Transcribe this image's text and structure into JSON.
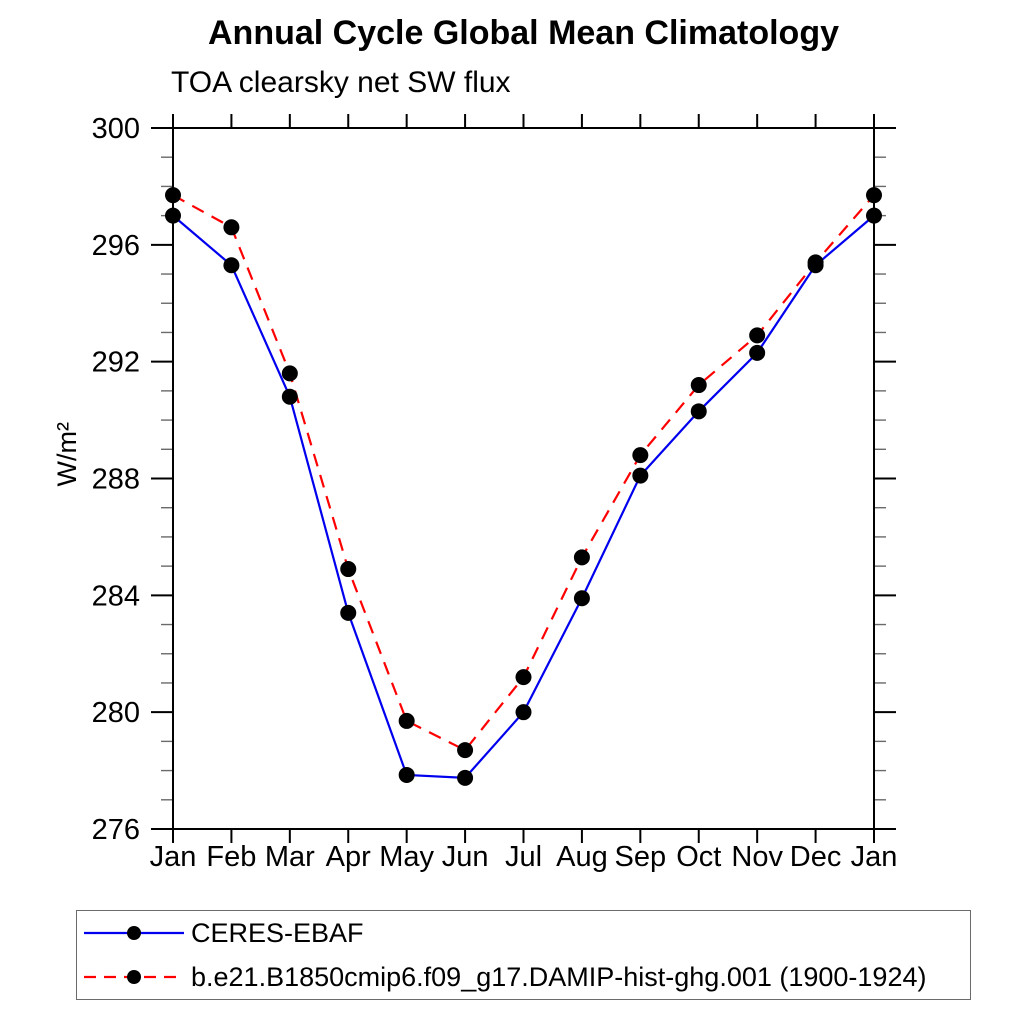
{
  "title": "Annual Cycle Global Mean Climatology",
  "subtitle": "TOA clearsky net SW flux",
  "ylabel": "W/m²",
  "chart_data": {
    "type": "line",
    "categories": [
      "Jan",
      "Feb",
      "Mar",
      "Apr",
      "May",
      "Jun",
      "Jul",
      "Aug",
      "Sep",
      "Oct",
      "Nov",
      "Dec",
      "Jan"
    ],
    "series": [
      {
        "name": "CERES-EBAF",
        "color": "#0000ee",
        "line_style": "solid",
        "marker": "filled-circle",
        "marker_color": "#000000",
        "values": [
          297.0,
          295.3,
          290.8,
          283.4,
          277.85,
          277.75,
          280.0,
          283.9,
          288.1,
          290.3,
          292.3,
          295.3,
          297.0
        ]
      },
      {
        "name": "b.e21.B1850cmip6.f09_g17.DAMIP-hist-ghg.001 (1900-1924)",
        "color": "#ff0000",
        "line_style": "dashed",
        "marker": "filled-circle",
        "marker_color": "#000000",
        "values": [
          297.7,
          296.6,
          291.6,
          284.9,
          279.7,
          278.7,
          281.2,
          285.3,
          288.8,
          291.2,
          292.9,
          295.4,
          297.7
        ]
      }
    ],
    "xlabel": "",
    "ylabel": "W/m²",
    "ylim": [
      276,
      300
    ],
    "y_major_ticks": [
      300,
      296,
      292,
      288,
      284,
      280,
      276
    ],
    "y_minor_step": 1,
    "grid": false,
    "legend_position": "bottom-left-box",
    "axis_color": "#000000"
  }
}
